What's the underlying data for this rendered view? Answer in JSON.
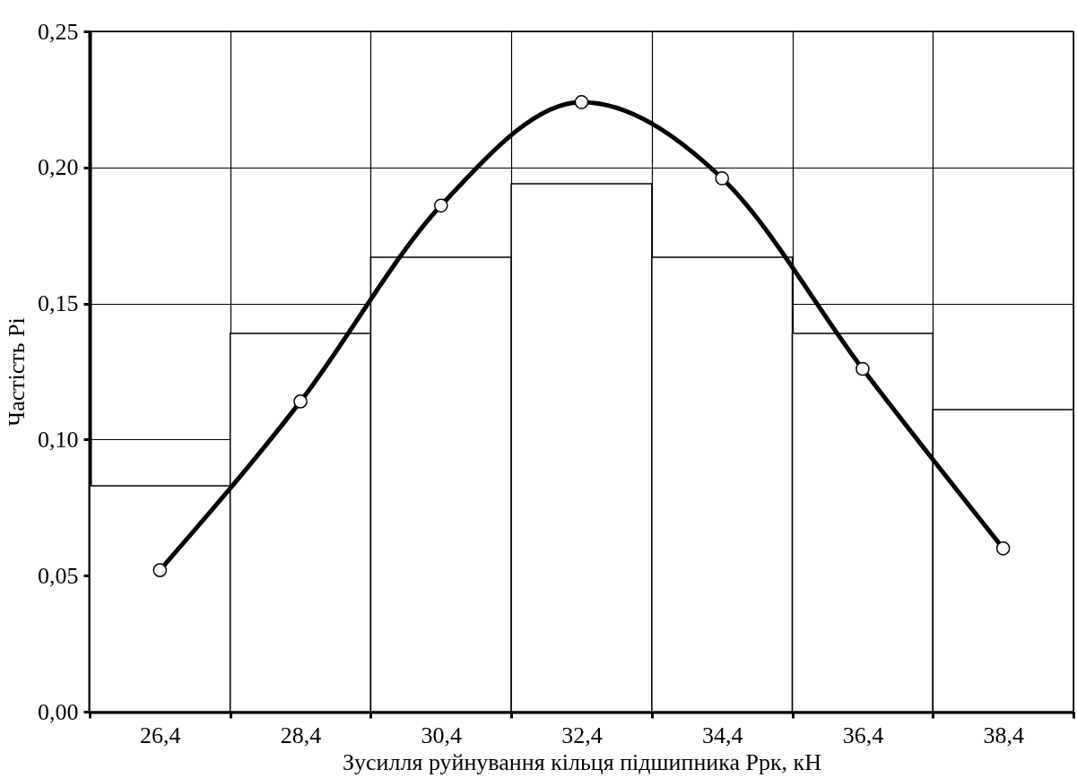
{
  "chart_data": {
    "type": "bar",
    "xlabel": "Зусилля руйнування кільця підшипника Pрк, кН",
    "ylabel": "Частість Pi",
    "categories": [
      "26,4",
      "28,4",
      "30,4",
      "32,4",
      "34,4",
      "36,4",
      "38,4"
    ],
    "series": [
      {
        "color": "#ffffff",
        "values": [
          0.083,
          0.139,
          0.167,
          0.194,
          0.167,
          0.139,
          0.111
        ]
      },
      {
        "type": "line",
        "color": "#000000",
        "marker": "circle",
        "line_style": "solid",
        "values": [
          0.052,
          0.114,
          0.186,
          0.224,
          0.196,
          0.126,
          0.06
        ]
      }
    ],
    "ylim": [
      0,
      0.25
    ],
    "yticks": [
      {
        "value": 0,
        "label": "0,00"
      },
      {
        "value": 0.05,
        "label": "0,05"
      },
      {
        "value": 0.1,
        "label": "0,10"
      },
      {
        "value": 0.15,
        "label": "0,15"
      },
      {
        "value": 0.2,
        "label": "0,20"
      },
      {
        "value": 0.25,
        "label": "0,25"
      }
    ],
    "grid": true
  }
}
